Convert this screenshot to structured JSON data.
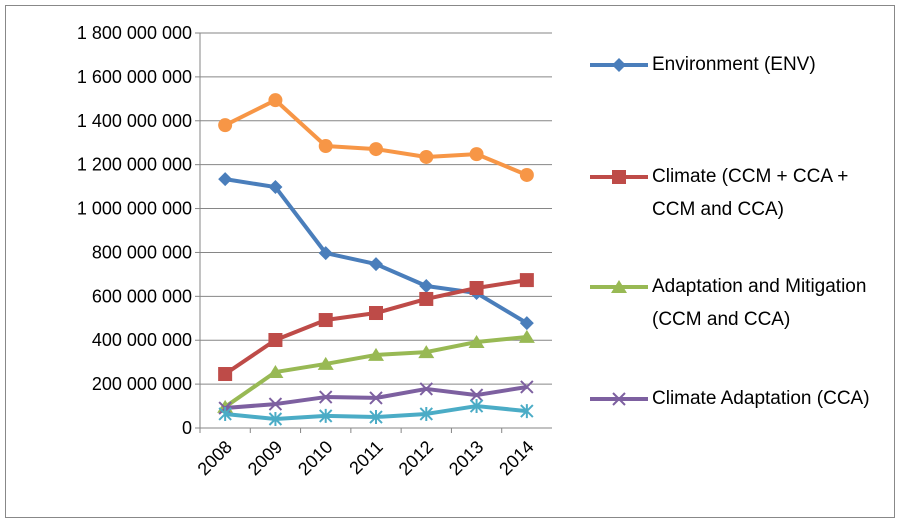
{
  "chart_data": {
    "type": "line",
    "categories": [
      "2008",
      "2009",
      "2010",
      "2011",
      "2012",
      "2013",
      "2014"
    ],
    "ylim": [
      0,
      1800000000
    ],
    "yticks": [
      0,
      {
        "value": 200000000,
        "label": "200 000 000"
      },
      {
        "value": 400000000,
        "label": "400 000 000"
      },
      {
        "value": 600000000,
        "label": "600 000 000"
      },
      {
        "value": 800000000,
        "label": "800 000 000"
      },
      {
        "value": 1000000000,
        "label": "1 000 000 000"
      },
      {
        "value": 1200000000,
        "label": "1 200 000 000"
      },
      {
        "value": 1400000000,
        "label": "1 400 000 000"
      },
      {
        "value": 1600000000,
        "label": "1 600 000 000"
      },
      {
        "value": 1800000000,
        "label": "1 800 000 000"
      }
    ],
    "grid": true,
    "legend": "right",
    "series": [
      {
        "name": "Environment (ENV)",
        "color": "#4a7ebb",
        "marker": "diamond",
        "values": [
          1134000000,
          1098000000,
          797000000,
          747000000,
          647000000,
          615000000,
          478000000
        ]
      },
      {
        "name": "Climate (CCM + CCA + CCM and CCA)",
        "color": "#be4b48",
        "marker": "square",
        "values": [
          246000000,
          401000000,
          492000000,
          524000000,
          588000000,
          638000000,
          674000000
        ]
      },
      {
        "name": "Adaptation and Mitigation (CCM and CCA)",
        "color": "#98b954",
        "marker": "triangle",
        "values": [
          96000000,
          255000000,
          292000000,
          333000000,
          346000000,
          392000000,
          415000000
        ]
      },
      {
        "name": "Climate Adaptation (CCA)",
        "color": "#7d60a0",
        "marker": "x",
        "values": [
          91000000,
          109000000,
          141000000,
          137000000,
          178000000,
          150000000,
          187000000
        ]
      },
      {
        "color": "#4bacc6",
        "marker": "star",
        "values": [
          64000000,
          41000000,
          55000000,
          50000000,
          64000000,
          100000000,
          77000000
        ]
      },
      {
        "color": "#f79646",
        "marker": "circle",
        "values": [
          1380000000,
          1494000000,
          1285000000,
          1271000000,
          1235000000,
          1248000000,
          1153000000
        ]
      }
    ]
  }
}
